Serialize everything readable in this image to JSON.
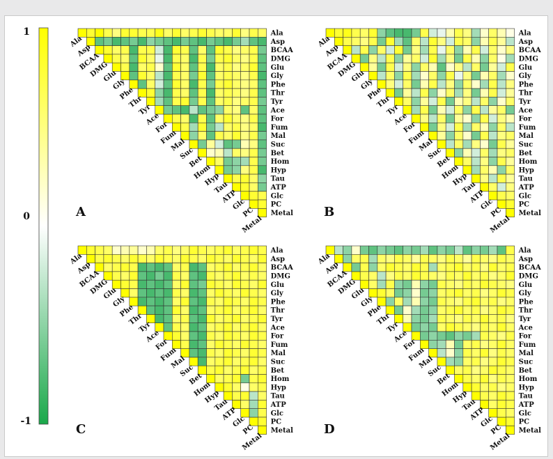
{
  "chart_data": {
    "type": "heatmap",
    "variables": [
      "Ala",
      "Asp",
      "BCAA",
      "DMG",
      "Glu",
      "Gly",
      "Phe",
      "Thr",
      "Tyr",
      "Ace",
      "For",
      "Fum",
      "Mal",
      "Suc",
      "Bet",
      "Hom",
      "Hyp",
      "Tau",
      "ATP",
      "Glc",
      "PC",
      "Metal"
    ],
    "colorbar": {
      "ticks": [
        "1",
        "0",
        "-1"
      ],
      "range": [
        -1,
        1
      ],
      "colors": {
        "positive": "#ffff00",
        "zero": "#ffffff",
        "negative": "#1aa84a"
      }
    },
    "panels": [
      {
        "label": "A",
        "matrix": [
          [
            0.8,
            1.0,
            0.7,
            0.5,
            0.8,
            0.8,
            0.7,
            0.7,
            0.9,
            0.6,
            0.8,
            0.6,
            0.7,
            0.8,
            0.7,
            0.6,
            0.6,
            0.8,
            0.5,
            0.7,
            0.6
          ],
          [
            -0.7,
            -0.6,
            -0.8,
            -0.7,
            -0.6,
            -0.8,
            -0.5,
            -0.6,
            -0.7,
            -0.8,
            -0.6,
            -0.7,
            -0.8,
            -0.6,
            -0.7,
            -0.8,
            -0.6,
            -0.4,
            -0.7,
            -0.8
          ],
          [
            0.8,
            0.6,
            0.7,
            -0.8,
            0.7,
            0.7,
            -0.2,
            -0.8,
            0.8,
            0.7,
            -0.7,
            0.6,
            -0.7,
            0.8,
            0.7,
            0.5,
            0.6,
            0.7,
            -0.6
          ],
          [
            0.7,
            0.6,
            -0.7,
            0.8,
            0.6,
            -0.1,
            -0.8,
            0.7,
            0.6,
            -0.8,
            0.7,
            -0.6,
            0.7,
            0.8,
            0.6,
            0.5,
            0.7,
            -0.7
          ],
          [
            0.7,
            -0.8,
            0.6,
            0.7,
            0.2,
            -0.7,
            0.8,
            0.6,
            -0.7,
            0.7,
            -0.8,
            0.6,
            0.7,
            0.5,
            0.6,
            0.8,
            -0.7
          ],
          [
            -0.7,
            0.8,
            0.6,
            -0.3,
            -0.8,
            0.7,
            0.6,
            -0.6,
            0.8,
            -0.7,
            0.6,
            0.7,
            0.6,
            0.5,
            0.7,
            -0.8
          ],
          [
            -0.7,
            0.6,
            -0.2,
            -0.7,
            0.8,
            0.6,
            -0.8,
            0.7,
            -0.6,
            0.7,
            0.8,
            0.6,
            0.5,
            0.6,
            -0.7
          ],
          [
            0.8,
            -0.5,
            -0.8,
            0.7,
            0.6,
            -0.7,
            0.7,
            -0.8,
            0.6,
            0.7,
            0.6,
            0.5,
            0.7,
            -0.7
          ],
          [
            -0.4,
            -0.7,
            0.7,
            0.8,
            -0.6,
            0.7,
            -0.7,
            0.6,
            0.7,
            0.5,
            0.6,
            0.7,
            -0.6
          ],
          [
            -0.6,
            -0.7,
            -0.8,
            -0.3,
            -0.7,
            -0.6,
            -0.5,
            0.6,
            0.5,
            -0.7,
            0.6,
            -0.7
          ],
          [
            0.7,
            0.6,
            -0.8,
            0.7,
            -0.7,
            0.6,
            0.8,
            0.6,
            0.5,
            0.7,
            -0.7
          ],
          [
            0.7,
            -0.4,
            0.8,
            -0.6,
            -0.3,
            0.6,
            0.7,
            0.5,
            0.6,
            -0.8
          ],
          [
            -0.5,
            0.6,
            -0.7,
            0.7,
            0.6,
            0.8,
            0.5,
            0.7,
            -0.6
          ],
          [
            -0.6,
            0.4,
            -0.2,
            -0.7,
            -0.6,
            0.3,
            0.5,
            -0.7
          ],
          [
            0.2,
            0.3,
            -0.3,
            0.6,
            0.5,
            0.7,
            -0.6
          ],
          [
            0.6,
            -0.6,
            -0.5,
            -0.4,
            0.7,
            -0.6
          ],
          [
            -0.6,
            -0.5,
            0.5,
            0.7,
            -0.8
          ],
          [
            0.7,
            0.8,
            0.6,
            -0.5
          ],
          [
            0.8,
            0.6,
            -0.6
          ],
          [
            0.8,
            0.7
          ],
          [
            0.8
          ]
        ]
      },
      {
        "label": "B",
        "matrix": [
          [
            0.8,
            0.9,
            0.7,
            0.6,
            0.8,
            -0.5,
            -0.7,
            -0.8,
            -0.8,
            -0.6,
            0.7,
            -0.2,
            -0.1,
            0.3,
            0.7,
            0.5,
            -0.4,
            0.2,
            0.6,
            0.3,
            0.1
          ],
          [
            0.7,
            0.6,
            0.5,
            0.7,
            -0.6,
            0.8,
            -0.4,
            -0.7,
            0.6,
            -0.3,
            0.8,
            0.5,
            -0.2,
            0.7,
            0.6,
            -0.5,
            0.3,
            0.7,
            0.4,
            -0.3
          ],
          [
            -0.3,
            0.7,
            -0.5,
            0.6,
            -0.2,
            0.8,
            -0.6,
            0.5,
            -0.4,
            0.7,
            -0.1,
            0.6,
            -0.5,
            0.3,
            0.7,
            -0.2,
            0.6,
            0.2,
            0.5
          ],
          [
            -0.6,
            0.5,
            -0.3,
            0.7,
            -0.5,
            0.4,
            0.6,
            -0.2,
            0.8,
            -0.4,
            0.5,
            -0.6,
            0.7,
            0.3,
            -0.5,
            0.6,
            0.1,
            -0.4
          ],
          [
            0.4,
            -0.6,
            0.7,
            -0.2,
            0.5,
            -0.5,
            0.6,
            0.3,
            -0.7,
            0.2,
            0.5,
            -0.3,
            0.6,
            -0.6,
            0.4,
            -0.2,
            0.7
          ],
          [
            -0.3,
            0.6,
            -0.5,
            0.7,
            -0.4,
            0.2,
            0.6,
            -0.5,
            0.7,
            -0.1,
            0.5,
            -0.6,
            0.3,
            0.6,
            -0.4,
            0.2
          ],
          [
            0.5,
            -0.2,
            0.6,
            -0.6,
            0.3,
            0.7,
            -0.3,
            0.5,
            -0.5,
            0.6,
            0.2,
            -0.4,
            0.7,
            -0.3,
            0.5
          ],
          [
            -0.6,
            0.4,
            -0.3,
            0.7,
            -0.5,
            0.2,
            0.6,
            -0.4,
            0.5,
            -0.6,
            0.3,
            0.7,
            -0.2,
            0.4
          ],
          [
            0.6,
            -0.5,
            0.4,
            -0.2,
            0.7,
            -0.6,
            0.3,
            0.5,
            -0.3,
            0.6,
            -0.5,
            0.2,
            0.6
          ],
          [
            -0.4,
            0.7,
            -0.6,
            0.3,
            -0.2,
            0.6,
            -0.5,
            0.7,
            -0.3,
            0.4,
            0.6,
            -0.6
          ],
          [
            0.5,
            -0.3,
            0.6,
            -0.6,
            0.4,
            0.2,
            -0.5,
            0.7,
            -0.2,
            0.5,
            0.3
          ],
          [
            -0.6,
            0.5,
            -0.2,
            0.7,
            -0.4,
            0.6,
            0.3,
            -0.5,
            0.6,
            -0.3
          ],
          [
            0.4,
            -0.5,
            0.6,
            0.2,
            -0.6,
            0.7,
            -0.3,
            0.5,
            0.6
          ],
          [
            -0.3,
            0.6,
            -0.4,
            0.5,
            0.2,
            -0.6,
            0.7,
            0.4
          ],
          [
            -0.5,
            0.3,
            -0.2,
            0.6,
            -0.4,
            0.5,
            0.6
          ],
          [
            0.6,
            -0.3,
            0.5,
            -0.5,
            0.7,
            0.4
          ],
          [
            -0.4,
            0.6,
            0.3,
            -0.5,
            0.6
          ],
          [
            0.5,
            -0.3,
            0.7,
            0.4
          ],
          [
            0.6,
            -0.2,
            0.5
          ],
          [
            0.7,
            0.6
          ],
          [
            0.8
          ]
        ]
      },
      {
        "label": "C",
        "matrix": [
          [
            0.8,
            0.7,
            0.6,
            0.2,
            0.3,
            0.4,
            0.2,
            0.3,
            0.6,
            0.7,
            0.5,
            0.6,
            0.8,
            0.7,
            0.6,
            0.7,
            0.8,
            0.6,
            0.7,
            0.8,
            0.7
          ],
          [
            0.7,
            0.8,
            0.7,
            0.6,
            0.8,
            0.7,
            0.6,
            0.8,
            0.7,
            0.6,
            0.8,
            0.7,
            0.6,
            0.8,
            0.7,
            0.6,
            0.8,
            0.7,
            0.6,
            0.8
          ],
          [
            0.6,
            0.7,
            0.8,
            0.7,
            -0.8,
            -0.7,
            -0.8,
            -0.7,
            0.6,
            0.7,
            -0.8,
            -0.7,
            0.6,
            0.7,
            0.8,
            0.6,
            0.7,
            0.8,
            0.6
          ],
          [
            0.7,
            0.6,
            0.8,
            -0.7,
            -0.8,
            -0.6,
            -0.8,
            0.7,
            0.6,
            -0.7,
            -0.8,
            0.7,
            0.6,
            0.7,
            0.8,
            0.6,
            0.7,
            0.6
          ],
          [
            0.8,
            0.7,
            -0.8,
            -0.7,
            -0.8,
            -0.7,
            0.6,
            0.8,
            -0.7,
            -0.6,
            0.8,
            0.7,
            0.6,
            0.8,
            0.7,
            0.6,
            0.8
          ],
          [
            0.6,
            -0.7,
            -0.8,
            -0.7,
            -0.8,
            0.7,
            0.6,
            -0.8,
            -0.7,
            0.6,
            0.8,
            0.7,
            0.6,
            0.8,
            0.7,
            0.6
          ],
          [
            -0.8,
            -0.7,
            -0.8,
            -0.7,
            0.6,
            0.8,
            -0.7,
            -0.8,
            0.7,
            0.6,
            0.8,
            0.7,
            0.6,
            0.8,
            0.7
          ],
          [
            -0.7,
            -0.8,
            -0.7,
            0.8,
            0.6,
            -0.8,
            -0.7,
            0.6,
            0.7,
            0.8,
            0.6,
            0.7,
            0.8,
            0.6
          ],
          [
            -0.8,
            -0.7,
            0.6,
            0.7,
            -0.7,
            -0.8,
            0.8,
            0.6,
            0.7,
            0.8,
            0.6,
            0.7,
            0.8
          ],
          [
            -0.7,
            0.7,
            0.6,
            -0.8,
            -0.7,
            0.6,
            0.7,
            0.8,
            0.6,
            0.7,
            0.8,
            0.6
          ],
          [
            0.8,
            0.6,
            -0.7,
            -0.8,
            0.7,
            0.6,
            0.8,
            0.7,
            0.6,
            0.8,
            0.7
          ],
          [
            0.7,
            -0.8,
            -0.7,
            0.6,
            0.8,
            0.7,
            0.6,
            0.8,
            0.7,
            0.6
          ],
          [
            -0.7,
            -0.8,
            0.7,
            0.6,
            0.8,
            0.7,
            0.6,
            0.8,
            0.7
          ],
          [
            -0.8,
            0.6,
            0.7,
            0.8,
            0.6,
            0.7,
            0.8,
            0.6
          ],
          [
            0.7,
            0.8,
            0.6,
            0.7,
            0.8,
            0.6,
            0.7
          ],
          [
            0.6,
            0.7,
            0.8,
            -0.6,
            0.7,
            0.8
          ],
          [
            0.8,
            0.6,
            0.1,
            0.6,
            0.7
          ],
          [
            0.7,
            0.8,
            -0.3,
            0.6
          ],
          [
            0.6,
            -0.4,
            0.8
          ],
          [
            -0.5,
            0.7
          ],
          [
            0.8
          ]
        ]
      },
      {
        "label": "D",
        "matrix": [
          [
            -0.3,
            -0.5,
            0.2,
            -0.6,
            -0.7,
            -0.5,
            -0.6,
            -0.7,
            -0.5,
            -0.6,
            -0.4,
            -0.7,
            -0.5,
            -0.6,
            -0.3,
            -0.7,
            -0.5,
            -0.6,
            -0.4,
            -0.7,
            0.7
          ],
          [
            -0.5,
            0.6,
            0.7,
            -0.4,
            0.6,
            0.5,
            0.7,
            0.6,
            0.4,
            0.7,
            0.6,
            0.5,
            0.7,
            0.6,
            0.4,
            0.7,
            0.6,
            0.5,
            0.7,
            0.6
          ],
          [
            -0.6,
            0.7,
            -0.5,
            0.6,
            0.8,
            0.7,
            0.6,
            0.8,
            0.7,
            -0.4,
            0.6,
            0.7,
            0.8,
            0.6,
            0.7,
            0.5,
            0.8,
            0.6,
            0.7
          ],
          [
            0.7,
            0.6,
            -0.3,
            0.5,
            0.7,
            0.6,
            0.8,
            0.7,
            0.6,
            0.5,
            0.7,
            0.6,
            0.8,
            0.6,
            0.7,
            0.5,
            0.6,
            0.8
          ],
          [
            0.6,
            -0.4,
            0.7,
            -0.5,
            -0.6,
            0.3,
            -0.5,
            -0.6,
            0.7,
            0.6,
            0.5,
            0.7,
            0.6,
            0.8,
            0.7,
            0.6,
            0.5
          ],
          [
            0.8,
            0.6,
            -0.6,
            -0.5,
            0.2,
            -0.6,
            -0.5,
            0.6,
            0.7,
            0.8,
            0.6,
            0.7,
            0.5,
            0.6,
            0.8,
            0.7
          ],
          [
            -0.5,
            0.6,
            -0.4,
            0.3,
            -0.5,
            -0.6,
            0.7,
            0.6,
            0.5,
            0.7,
            0.8,
            0.6,
            0.7,
            0.5,
            0.6
          ],
          [
            -0.6,
            0.2,
            -0.4,
            -0.6,
            -0.5,
            0.6,
            0.7,
            0.8,
            0.6,
            0.7,
            0.5,
            0.6,
            0.8,
            0.7
          ],
          [
            0.3,
            -0.5,
            -0.6,
            -0.4,
            0.7,
            0.6,
            0.5,
            0.7,
            0.6,
            0.8,
            0.6,
            0.7,
            0.5
          ],
          [
            -0.6,
            -0.5,
            -0.6,
            0.6,
            0.8,
            0.7,
            0.6,
            0.5,
            0.7,
            0.6,
            0.8,
            0.6
          ],
          [
            -0.6,
            -0.5,
            -0.6,
            -0.7,
            -0.5,
            -0.6,
            -0.4,
            0.7,
            0.6,
            0.5,
            0.7
          ],
          [
            -0.5,
            -0.4,
            0.3,
            -0.6,
            0.6,
            0.7,
            0.5,
            0.6,
            0.8,
            0.6
          ],
          [
            -0.3,
            0.2,
            -0.5,
            0.7,
            0.6,
            0.8,
            0.5,
            0.7,
            0.6
          ],
          [
            -0.4,
            -0.5,
            0.6,
            0.7,
            0.5,
            0.6,
            0.8,
            0.7
          ],
          [
            0.6,
            0.7,
            0.5,
            0.6,
            0.8,
            0.7,
            0.6
          ],
          [
            0.7,
            0.6,
            0.8,
            0.5,
            0.7,
            0.6
          ],
          [
            0.8,
            0.6,
            0.7,
            0.5,
            0.6
          ],
          [
            0.7,
            0.6,
            0.8,
            0.7
          ],
          [
            0.6,
            0.8,
            0.7
          ],
          [
            0.7,
            0.6
          ],
          [
            0.8
          ]
        ]
      }
    ]
  }
}
